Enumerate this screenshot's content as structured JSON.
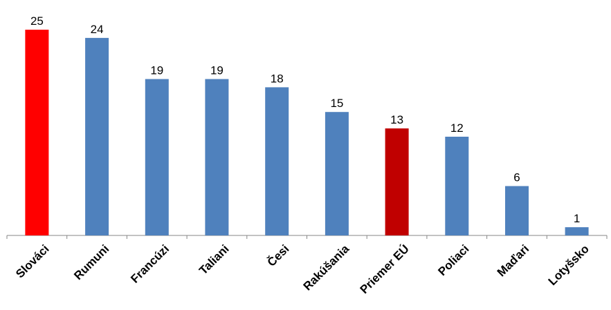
{
  "chart_data": {
    "type": "bar",
    "categories": [
      "Slováci",
      "Rumuni",
      "Francúzi",
      "Taliani",
      "Česi",
      "Rakúšania",
      "Priemer EÚ",
      "Poliaci",
      "Maďari",
      "Lotyšsko"
    ],
    "values": [
      25,
      24,
      19,
      19,
      18,
      15,
      13,
      12,
      6,
      1
    ],
    "colors": [
      "#ff0000",
      "#4f81bd",
      "#4f81bd",
      "#4f81bd",
      "#4f81bd",
      "#4f81bd",
      "#c00000",
      "#4f81bd",
      "#4f81bd",
      "#4f81bd"
    ],
    "ylim": [
      0,
      25
    ],
    "grid": false,
    "data_labels": true
  }
}
